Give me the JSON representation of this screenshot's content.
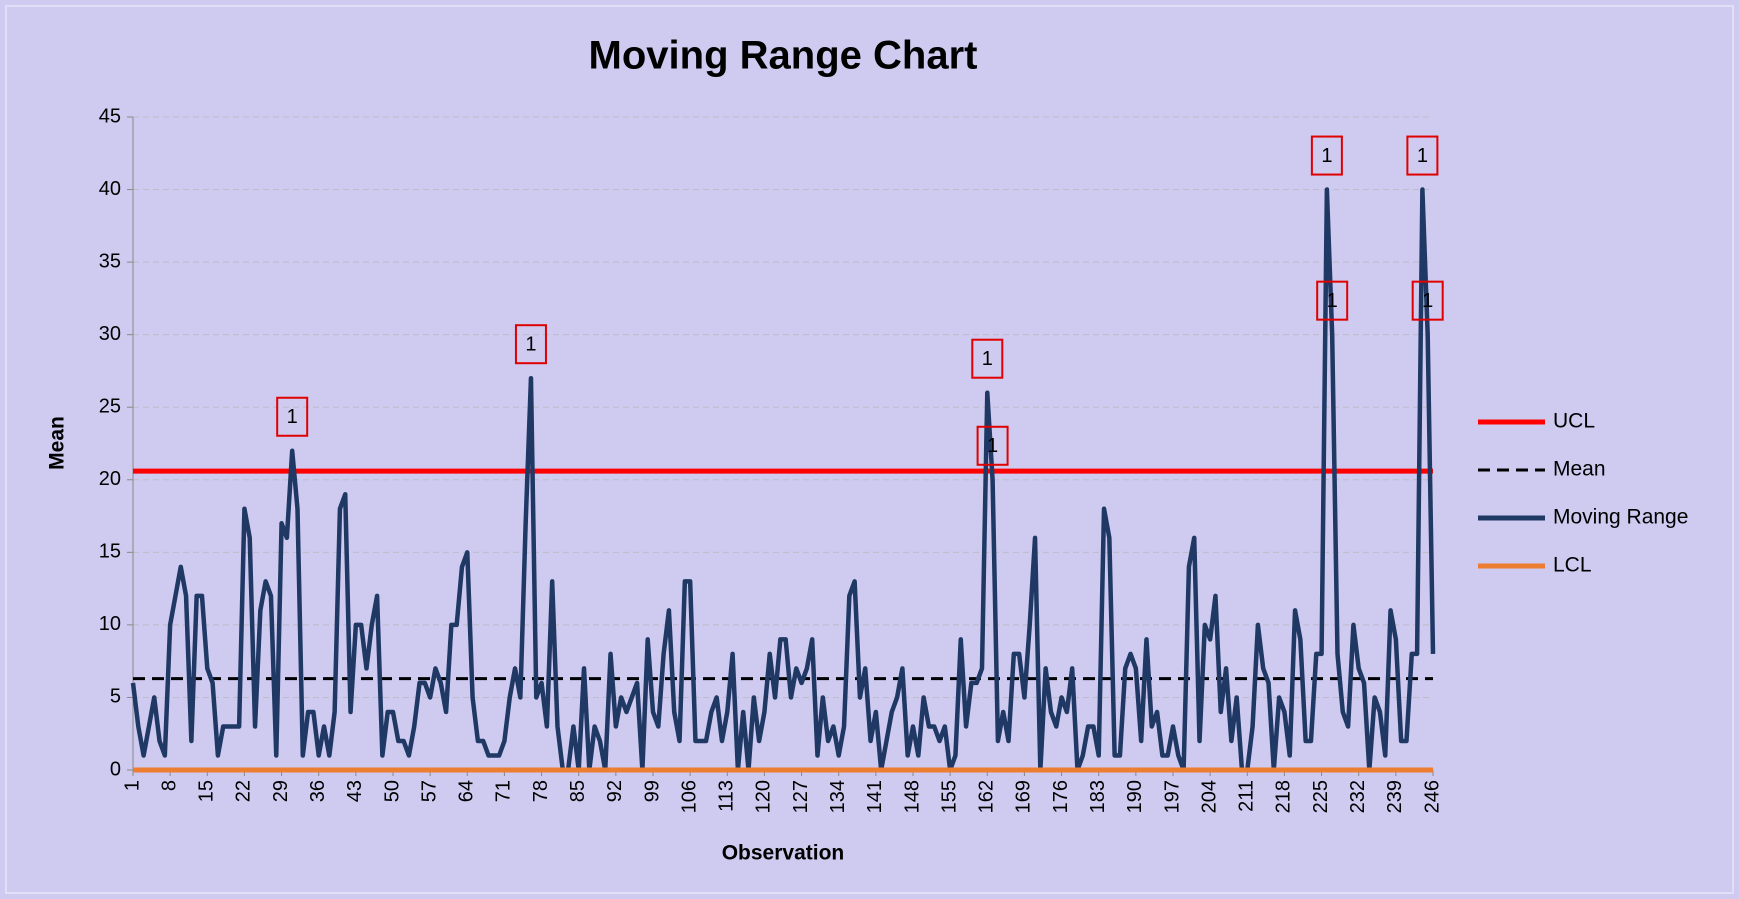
{
  "chart_data": {
    "type": "line",
    "title": "Moving Range Chart",
    "xlabel": "Observation",
    "ylabel": "Mean",
    "x": [
      1,
      2,
      3,
      4,
      5,
      6,
      7,
      8,
      9,
      10,
      11,
      12,
      13,
      14,
      15,
      16,
      17,
      18,
      19,
      20,
      21,
      22,
      23,
      24,
      25,
      26,
      27,
      28,
      29,
      30,
      31,
      32,
      33,
      34,
      35,
      36,
      37,
      38,
      39,
      40,
      41,
      42,
      43,
      44,
      45,
      46,
      47,
      48,
      49,
      50,
      51,
      52,
      53,
      54,
      55,
      56,
      57,
      58,
      59,
      60,
      61,
      62,
      63,
      64,
      65,
      66,
      67,
      68,
      69,
      70,
      71,
      72,
      73,
      74,
      75,
      76,
      77,
      78,
      79,
      80,
      81,
      82,
      83,
      84,
      85,
      86,
      87,
      88,
      89,
      90,
      91,
      92,
      93,
      94,
      95,
      96,
      97,
      98,
      99,
      100,
      101,
      102,
      103,
      104,
      105,
      106,
      107,
      108,
      109,
      110,
      111,
      112,
      113,
      114,
      115,
      116,
      117,
      118,
      119,
      120,
      121,
      122,
      123,
      124,
      125,
      126,
      127,
      128,
      129,
      130,
      131,
      132,
      133,
      134,
      135,
      136,
      137,
      138,
      139,
      140,
      141,
      142,
      143,
      144,
      145,
      146,
      147,
      148,
      149,
      150,
      151,
      152,
      153,
      154,
      155,
      156,
      157,
      158,
      159,
      160,
      161,
      162,
      163,
      164,
      165,
      166,
      167,
      168,
      169,
      170,
      171,
      172,
      173,
      174,
      175,
      176,
      177,
      178,
      179,
      180,
      181,
      182,
      183,
      184,
      185,
      186,
      187,
      188,
      189,
      190,
      191,
      192,
      193,
      194,
      195,
      196,
      197,
      198,
      199,
      200,
      201,
      202,
      203,
      204,
      205,
      206,
      207,
      208,
      209,
      210,
      211,
      212,
      213,
      214,
      215,
      216,
      217,
      218,
      219,
      220,
      221,
      222,
      223,
      224,
      225,
      226,
      227,
      228,
      229,
      230,
      231,
      232,
      233,
      234,
      235,
      236,
      237,
      238,
      239,
      240,
      241,
      242,
      243,
      244,
      245,
      246
    ],
    "xlim": [
      1,
      246
    ],
    "xticks": [
      1,
      8,
      15,
      22,
      29,
      36,
      43,
      50,
      57,
      64,
      71,
      78,
      85,
      92,
      99,
      106,
      113,
      120,
      127,
      134,
      141,
      148,
      155,
      162,
      169,
      176,
      183,
      190,
      197,
      204,
      211,
      218,
      225,
      232,
      239,
      246
    ],
    "ylim": [
      0,
      45
    ],
    "yticks": [
      0,
      5,
      10,
      15,
      20,
      25,
      30,
      35,
      40,
      45
    ],
    "grid": true,
    "legend": "right",
    "series": [
      {
        "name": "UCL",
        "color": "#ff0000",
        "style": "solid",
        "value": 20.6
      },
      {
        "name": "Mean",
        "color": "#000000",
        "style": "dashed",
        "value": 6.3
      },
      {
        "name": "Moving Range",
        "color": "#1f3864",
        "style": "solid",
        "values": [
          6,
          3,
          1,
          3,
          5,
          2,
          1,
          10,
          12,
          14,
          12,
          2,
          12,
          12,
          7,
          6,
          1,
          3,
          3,
          3,
          3,
          18,
          16,
          3,
          11,
          13,
          12,
          1,
          17,
          16,
          22,
          18,
          1,
          4,
          4,
          1,
          3,
          1,
          4,
          18,
          19,
          4,
          10,
          10,
          7,
          10,
          12,
          1,
          4,
          4,
          2,
          2,
          1,
          3,
          6,
          6,
          5,
          7,
          6,
          4,
          10,
          10,
          14,
          15,
          5,
          2,
          2,
          1,
          1,
          1,
          2,
          5,
          7,
          5,
          17,
          27,
          5,
          6,
          3,
          13,
          3,
          0,
          0,
          3,
          0,
          7,
          0,
          3,
          2,
          0,
          8,
          3,
          5,
          4,
          5,
          6,
          0,
          9,
          4,
          3,
          8,
          11,
          4,
          2,
          13,
          13,
          2,
          2,
          2,
          4,
          5,
          2,
          4,
          8,
          0,
          4,
          0,
          5,
          2,
          4,
          8,
          5,
          9,
          9,
          5,
          7,
          6,
          7,
          9,
          1,
          5,
          2,
          3,
          1,
          3,
          12,
          13,
          5,
          7,
          2,
          4,
          0,
          2,
          4,
          5,
          7,
          1,
          3,
          1,
          5,
          3,
          3,
          2,
          3,
          0,
          1,
          9,
          3,
          6,
          6,
          7,
          26,
          20,
          2,
          4,
          2,
          8,
          8,
          5,
          10,
          16,
          0,
          7,
          4,
          3,
          5,
          4,
          7,
          0,
          1,
          3,
          3,
          1,
          18,
          16,
          1,
          1,
          7,
          8,
          7,
          2,
          9,
          3,
          4,
          1,
          1,
          3,
          1,
          0,
          14,
          16,
          2,
          10,
          9,
          12,
          4,
          7,
          2,
          5,
          0,
          0,
          3,
          10,
          7,
          6,
          0,
          5,
          4,
          1,
          11,
          9,
          2,
          2,
          8,
          8,
          40,
          30,
          8,
          4,
          3,
          10,
          7,
          6,
          0,
          5,
          4,
          1,
          11,
          9,
          2,
          2,
          8,
          8,
          40,
          30,
          8
        ]
      },
      {
        "name": "LCL",
        "color": "#ed7d31",
        "style": "solid",
        "value": 0
      }
    ],
    "annotations": [
      {
        "text": "1",
        "x": 31
      },
      {
        "text": "1",
        "x": 76
      },
      {
        "text": "1",
        "x": 162
      },
      {
        "text": "1",
        "x": 163
      },
      {
        "text": "1",
        "x": 226
      },
      {
        "text": "1",
        "x": 227
      },
      {
        "text": "1",
        "x": 244
      },
      {
        "text": "1",
        "x": 245
      }
    ]
  }
}
